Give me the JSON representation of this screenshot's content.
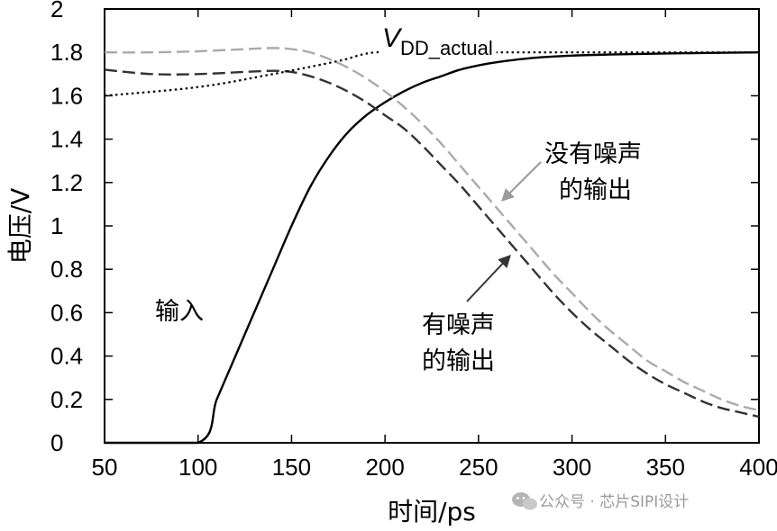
{
  "chart_data": {
    "type": "line",
    "xlabel": "时间/ps",
    "ylabel": "电压/V",
    "xlim": [
      50,
      400
    ],
    "ylim": [
      0,
      2
    ],
    "xticks": [
      "50",
      "100",
      "150",
      "200",
      "250",
      "300",
      "350",
      "400"
    ],
    "yticks": [
      "0",
      "0.2",
      "0.4",
      "0.6",
      "0.8",
      "1",
      "1.2",
      "1.4",
      "1.6",
      "1.8",
      "2"
    ],
    "series": [
      {
        "name": "输入",
        "style": "solid",
        "color": "#000000",
        "points": [
          [
            50,
            0
          ],
          [
            100,
            0
          ],
          [
            110,
            0.2
          ],
          [
            120,
            0.4
          ],
          [
            130,
            0.6
          ],
          [
            140,
            0.8
          ],
          [
            150,
            1.0
          ],
          [
            160,
            1.18
          ],
          [
            170,
            1.32
          ],
          [
            180,
            1.43
          ],
          [
            190,
            1.51
          ],
          [
            200,
            1.57
          ],
          [
            210,
            1.62
          ],
          [
            220,
            1.66
          ],
          [
            230,
            1.69
          ],
          [
            240,
            1.72
          ],
          [
            250,
            1.74
          ],
          [
            260,
            1.755
          ],
          [
            280,
            1.775
          ],
          [
            300,
            1.785
          ],
          [
            320,
            1.79
          ],
          [
            350,
            1.795
          ],
          [
            400,
            1.8
          ]
        ]
      },
      {
        "name": "没有噪声的输出",
        "style": "dashed",
        "color": "#aaaaaa",
        "points": [
          [
            50,
            1.8
          ],
          [
            75,
            1.8
          ],
          [
            100,
            1.805
          ],
          [
            125,
            1.815
          ],
          [
            140,
            1.82
          ],
          [
            150,
            1.815
          ],
          [
            160,
            1.8
          ],
          [
            170,
            1.77
          ],
          [
            180,
            1.73
          ],
          [
            190,
            1.68
          ],
          [
            200,
            1.62
          ],
          [
            210,
            1.55
          ],
          [
            220,
            1.47
          ],
          [
            230,
            1.38
          ],
          [
            240,
            1.28
          ],
          [
            250,
            1.18
          ],
          [
            260,
            1.08
          ],
          [
            270,
            0.98
          ],
          [
            280,
            0.88
          ],
          [
            290,
            0.78
          ],
          [
            300,
            0.69
          ],
          [
            310,
            0.6
          ],
          [
            320,
            0.52
          ],
          [
            330,
            0.45
          ],
          [
            340,
            0.38
          ],
          [
            350,
            0.33
          ],
          [
            360,
            0.28
          ],
          [
            370,
            0.24
          ],
          [
            380,
            0.2
          ],
          [
            390,
            0.17
          ],
          [
            400,
            0.15
          ]
        ]
      },
      {
        "name": "有噪声的输出",
        "style": "dashed",
        "color": "#333333",
        "points": [
          [
            50,
            1.72
          ],
          [
            75,
            1.7
          ],
          [
            100,
            1.7
          ],
          [
            125,
            1.71
          ],
          [
            140,
            1.715
          ],
          [
            150,
            1.71
          ],
          [
            160,
            1.69
          ],
          [
            170,
            1.66
          ],
          [
            180,
            1.62
          ],
          [
            190,
            1.57
          ],
          [
            200,
            1.51
          ],
          [
            210,
            1.45
          ],
          [
            220,
            1.37
          ],
          [
            230,
            1.28
          ],
          [
            240,
            1.19
          ],
          [
            250,
            1.09
          ],
          [
            260,
            0.99
          ],
          [
            270,
            0.89
          ],
          [
            280,
            0.79
          ],
          [
            290,
            0.69
          ],
          [
            300,
            0.6
          ],
          [
            310,
            0.52
          ],
          [
            320,
            0.45
          ],
          [
            330,
            0.38
          ],
          [
            340,
            0.32
          ],
          [
            350,
            0.27
          ],
          [
            360,
            0.23
          ],
          [
            370,
            0.19
          ],
          [
            380,
            0.16
          ],
          [
            390,
            0.14
          ],
          [
            400,
            0.12
          ]
        ]
      },
      {
        "name": "V_DD_actual",
        "style": "dotted",
        "color": "#000000",
        "points": [
          [
            50,
            1.6
          ],
          [
            100,
            1.64
          ],
          [
            140,
            1.7
          ],
          [
            175,
            1.76
          ],
          [
            195,
            1.8
          ],
          [
            230,
            1.8
          ],
          [
            400,
            1.8
          ]
        ]
      }
    ],
    "annotations": {
      "vdd_v": "V",
      "vdd_sub": "DD_actual",
      "input_label": "输入",
      "clean_line1": "没有噪声",
      "clean_line2": "的输出",
      "noisy_line1": "有噪声",
      "noisy_line2": "的输出"
    }
  },
  "watermark": "公众号 · 芯片SIPI设计"
}
